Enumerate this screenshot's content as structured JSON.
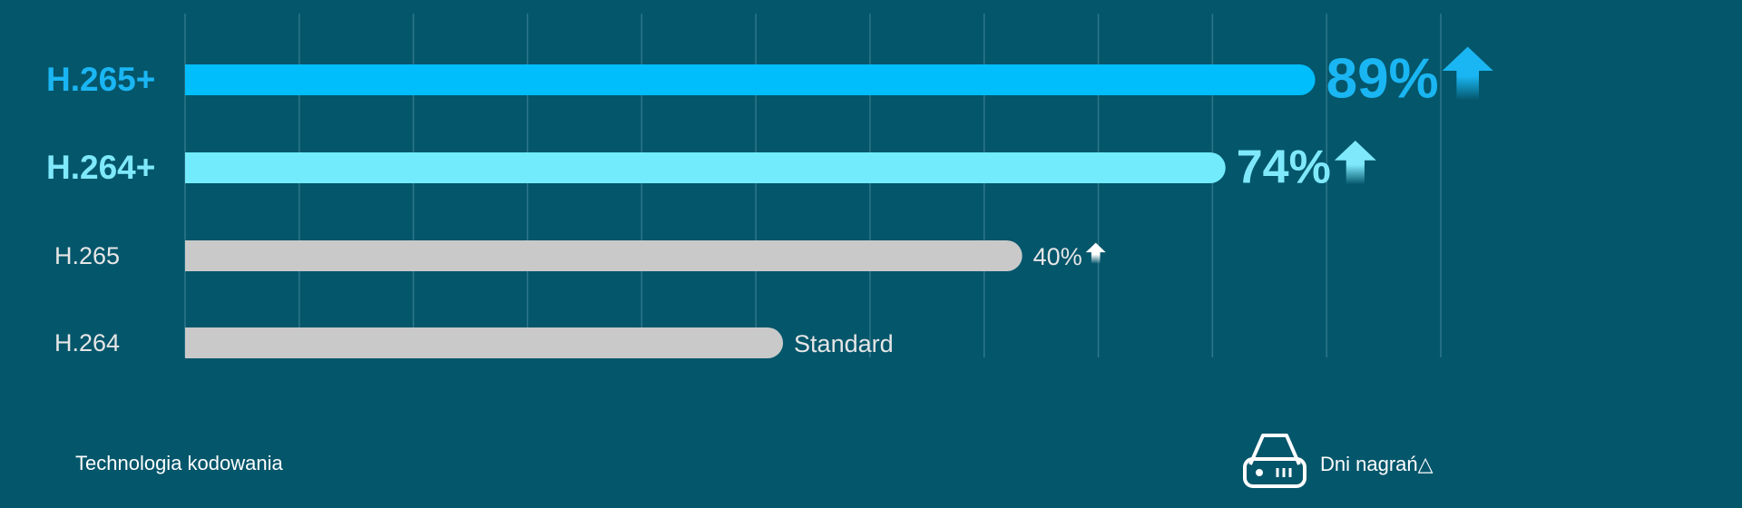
{
  "chart_data": {
    "type": "bar",
    "orientation": "horizontal",
    "categories": [
      "H.265+",
      "H.264+",
      "H.265",
      "H.264"
    ],
    "values": [
      89,
      74,
      40,
      0
    ],
    "value_labels": [
      "89%",
      "74%",
      "40%",
      "Standard"
    ],
    "colors": [
      "#00bdfb",
      "#72ecfd",
      "#c9c9c9",
      "#c9c9c9"
    ],
    "label_colors": [
      "#1ab6f3",
      "#7fe9fb",
      "#e6e6e6",
      "#e6e6e6"
    ],
    "xlim": [
      -100,
      110
    ],
    "xlabel": "Dni nagrań△",
    "ylabel": "Technologia kodowania",
    "grid": true
  }
}
